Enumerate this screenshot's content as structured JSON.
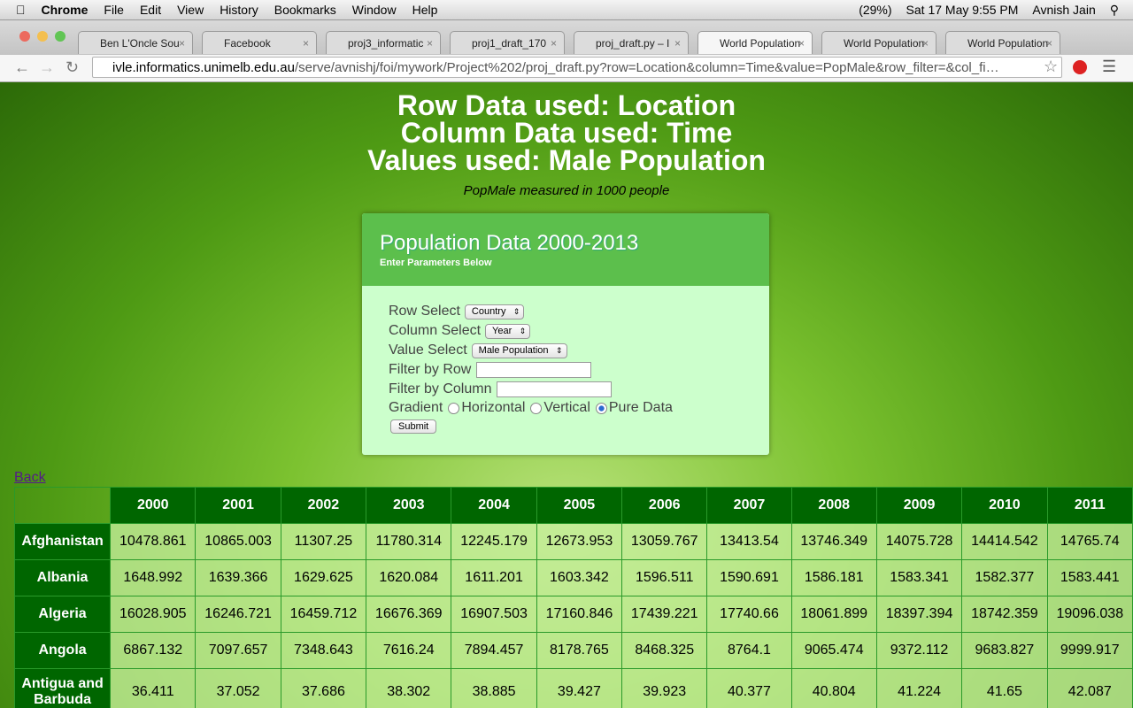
{
  "menubar": {
    "app": "Chrome",
    "menus": [
      "File",
      "Edit",
      "View",
      "History",
      "Bookmarks",
      "Window",
      "Help"
    ],
    "battery": "(29%)",
    "datetime": "Sat 17 May  9:55 PM",
    "user": "Avnish Jain"
  },
  "tabs": [
    "Ben L'Oncle Sou",
    "Facebook",
    "proj3_informatic",
    "proj1_draft_170",
    "proj_draft.py – I",
    "World Population",
    "World Population",
    "World Population"
  ],
  "address": {
    "host": "ivle.informatics.unimelb.edu.au",
    "path": "/serve/avnishj/foi/mywork/Project%202/proj_draft.py?row=Location&column=Time&value=PopMale&row_filter=&col_fi…"
  },
  "header": {
    "lines": [
      "Row Data used: Location",
      "Column Data used: Time",
      "Values used: Male Population"
    ],
    "note": "PopMale measured in 1000 people"
  },
  "form": {
    "title": "Population Data 2000-2013",
    "subtitle": "Enter Parameters Below",
    "row_select": {
      "label": "Row Select",
      "value": "Country"
    },
    "column_select": {
      "label": "Column Select",
      "value": "Year"
    },
    "value_select": {
      "label": "Value Select",
      "value": "Male Population"
    },
    "filter_row": "Filter by Row",
    "filter_column": "Filter by Column",
    "gradient": {
      "label": "Gradient",
      "options": [
        "Horizontal",
        "Vertical",
        "Pure Data"
      ]
    },
    "submit": "Submit"
  },
  "back": "Back",
  "table": {
    "columns": [
      "2000",
      "2001",
      "2002",
      "2003",
      "2004",
      "2005",
      "2006",
      "2007",
      "2008",
      "2009",
      "2010",
      "2011"
    ],
    "rows": [
      {
        "name": "Afghanistan",
        "values": [
          10478.861,
          10865.003,
          11307.25,
          11780.314,
          12245.179,
          12673.953,
          13059.767,
          13413.54,
          13746.349,
          14075.728,
          14414.542,
          14765.74
        ]
      },
      {
        "name": "Albania",
        "values": [
          1648.992,
          1639.366,
          1629.625,
          1620.084,
          1611.201,
          1603.342,
          1596.511,
          1590.691,
          1586.181,
          1583.341,
          1582.377,
          1583.441
        ]
      },
      {
        "name": "Algeria",
        "values": [
          16028.905,
          16246.721,
          16459.712,
          16676.369,
          16907.503,
          17160.846,
          17439.221,
          17740.66,
          18061.899,
          18397.394,
          18742.359,
          19096.038
        ]
      },
      {
        "name": "Angola",
        "values": [
          6867.132,
          7097.657,
          7348.643,
          7616.24,
          7894.457,
          8178.765,
          8468.325,
          8764.1,
          9065.474,
          9372.112,
          9683.827,
          9999.917
        ]
      },
      {
        "name": "Antigua and Barbuda",
        "values": [
          36.411,
          37.052,
          37.686,
          38.302,
          38.885,
          39.427,
          39.923,
          40.377,
          40.804,
          41.224,
          41.65,
          42.087
        ]
      }
    ]
  }
}
